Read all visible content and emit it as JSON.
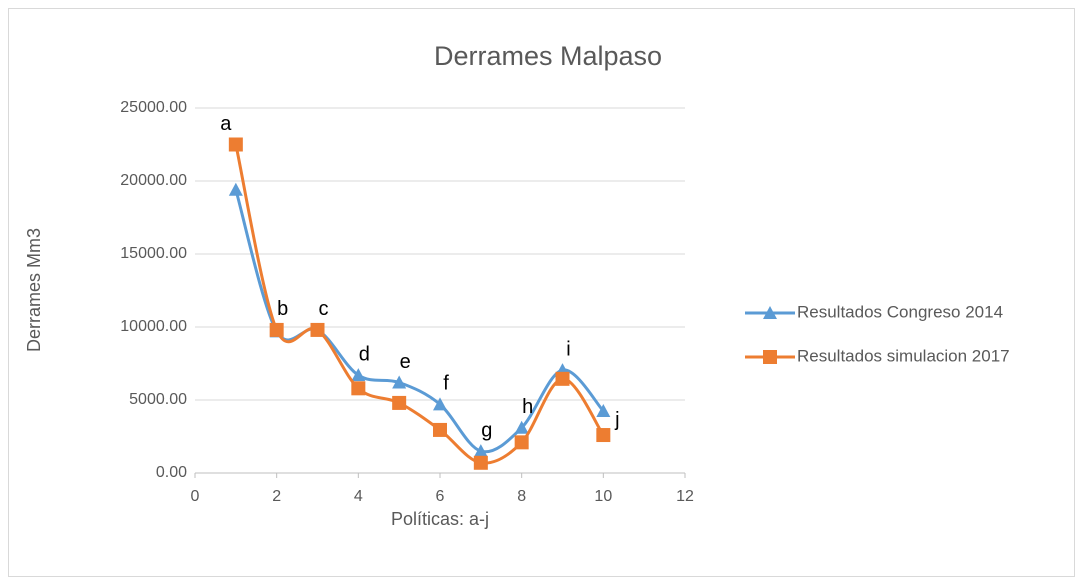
{
  "chart_data": {
    "type": "line",
    "title": "Derrames Malpaso",
    "x_label": "Políticas: a-j",
    "y_label": "Derrames Mm3",
    "x": [
      1,
      2,
      3,
      4,
      5,
      6,
      7,
      8,
      9,
      10
    ],
    "series": [
      {
        "name": "Resultados Congreso 2014",
        "color": "#5b9bd5",
        "marker": "triangle",
        "values": [
          19400,
          9700,
          9800,
          6700,
          6200,
          4700,
          1500,
          3100,
          7050,
          4250
        ]
      },
      {
        "name": "Resultados simulacion 2017",
        "color": "#ed7d31",
        "marker": "square",
        "values": [
          22500,
          9800,
          9800,
          5800,
          4800,
          2950,
          700,
          2100,
          6450,
          2600
        ]
      }
    ],
    "point_labels": [
      "a",
      "b",
      "c",
      "d",
      "e",
      "f",
      "g",
      "h",
      "i",
      "j"
    ],
    "xlim": [
      0,
      12
    ],
    "xticks": [
      0,
      2,
      4,
      6,
      8,
      10,
      12
    ],
    "ylim": [
      0,
      25000
    ],
    "yticks": [
      {
        "value": 0,
        "label": "0.00"
      },
      {
        "value": 5000,
        "label": "5000.00"
      },
      {
        "value": 10000,
        "label": "10000.00"
      },
      {
        "value": 15000,
        "label": "15000.00"
      },
      {
        "value": 20000,
        "label": "20000.00"
      },
      {
        "value": 25000,
        "label": "25000.00"
      }
    ],
    "grid": true,
    "legend": "right",
    "smooth": true
  }
}
